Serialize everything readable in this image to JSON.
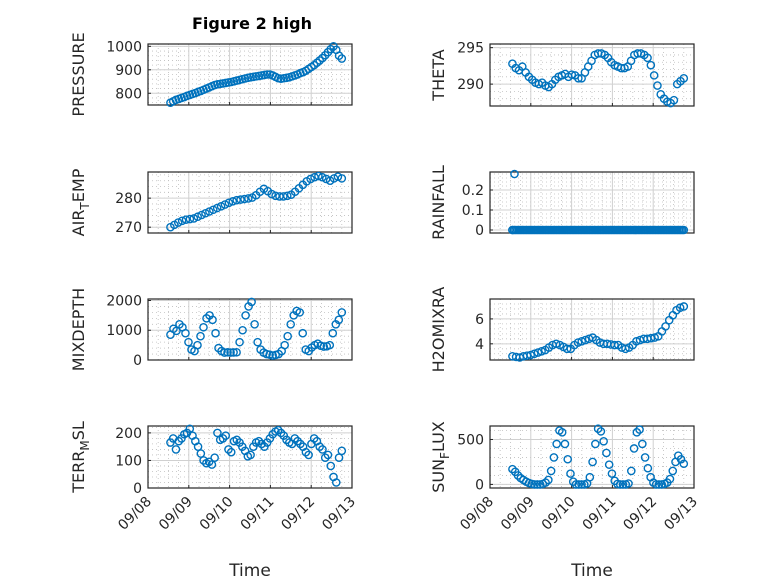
{
  "figure_title": "Figure 2 high",
  "colors": {
    "marker": "#0072bd",
    "axis": "#262626"
  },
  "chart_data": [
    {
      "type": "scatter",
      "name": "PRESSURE",
      "ylabel": "PRESSURE",
      "ylim": [
        750,
        1010
      ],
      "yticks": [
        800,
        900,
        1000
      ],
      "yticklabels": [
        "800",
        "900",
        "1000"
      ],
      "xlim": [
        0,
        5
      ],
      "xticklabels": [],
      "xlabel": "",
      "grid": true,
      "minor_grid": true,
      "y": [
        760,
        766,
        772,
        776,
        780,
        784,
        789,
        793,
        797,
        801,
        806,
        810,
        815,
        820,
        825,
        830,
        835,
        838,
        840,
        842,
        844,
        846,
        848,
        851,
        854,
        857,
        860,
        863,
        866,
        868,
        870,
        872,
        874,
        876,
        878,
        880,
        880,
        876,
        870,
        864,
        862,
        864,
        866,
        868,
        872,
        876,
        880,
        886,
        890,
        896,
        904,
        912,
        920,
        930,
        940,
        950,
        962,
        975,
        988,
        1000,
        985,
        960,
        948
      ]
    },
    {
      "type": "scatter",
      "name": "THETA",
      "ylabel": "THETA",
      "ylim": [
        287,
        295.5
      ],
      "yticks": [
        290,
        295
      ],
      "yticklabels": [
        "290",
        "295"
      ],
      "xlim": [
        0,
        5
      ],
      "xticklabels": [],
      "xlabel": "",
      "grid": true,
      "minor_grid": true,
      "y": [
        292.8,
        292.2,
        291.9,
        292.4,
        291.6,
        291.0,
        290.6,
        290.2,
        290.0,
        290.2,
        289.8,
        289.6,
        290.0,
        290.6,
        291.0,
        291.2,
        291.4,
        291.0,
        291.3,
        291.2,
        290.8,
        290.8,
        291.6,
        292.4,
        293.2,
        294.0,
        294.2,
        294.2,
        294.0,
        293.6,
        293.0,
        292.6,
        292.4,
        292.2,
        292.2,
        292.4,
        293.2,
        294.0,
        294.2,
        294.2,
        294.0,
        293.6,
        292.6,
        291.2,
        289.8,
        288.6,
        288.0,
        287.6,
        287.4,
        287.8,
        290.0,
        290.4,
        290.8
      ]
    },
    {
      "type": "scatter",
      "name": "AIR_TEMP",
      "ylabel": "AIR",
      "ylabel_sub": "T",
      "ylabel_rest": "EMP",
      "ylim": [
        268,
        289
      ],
      "yticks": [
        270,
        280
      ],
      "yticklabels": [
        "270",
        "280"
      ],
      "xlim": [
        0,
        5
      ],
      "xticklabels": [],
      "xlabel": "",
      "grid": true,
      "minor_grid": true,
      "y": [
        270.0,
        270.8,
        271.6,
        272.2,
        272.6,
        272.8,
        273.0,
        273.6,
        274.2,
        274.8,
        275.4,
        276.0,
        276.6,
        277.2,
        277.8,
        278.4,
        278.9,
        279.3,
        279.5,
        279.7,
        279.9,
        280.2,
        281.0,
        282.2,
        283.2,
        282.4,
        281.4,
        280.8,
        280.6,
        280.6,
        280.8,
        281.2,
        282.2,
        283.4,
        284.6,
        285.8,
        286.6,
        287.2,
        287.6,
        287.2,
        286.6,
        286.0,
        286.8,
        287.4,
        286.8
      ]
    },
    {
      "type": "scatter",
      "name": "RAINFALL",
      "ylabel": "RAINFALL",
      "ylim": [
        -0.015,
        0.29
      ],
      "yticks": [
        0,
        0.1,
        0.2
      ],
      "yticklabels": [
        "0",
        "0.1",
        "0.2"
      ],
      "xlim": [
        0,
        5
      ],
      "xticklabels": [],
      "xlabel": "",
      "grid": true,
      "minor_grid": true,
      "spike_value": 0.28,
      "baseline_value": 0
    },
    {
      "type": "scatter",
      "name": "MIXDEPTH",
      "ylabel": "MIXDEPTH",
      "ylim": [
        0,
        2050
      ],
      "yticks": [
        0,
        1000,
        2000
      ],
      "yticklabels": [
        "0",
        "1000",
        "2000"
      ],
      "xlim": [
        0,
        5
      ],
      "xticklabels": [],
      "xlabel": "",
      "grid": true,
      "minor_grid": true,
      "y": [
        850,
        1050,
        980,
        1200,
        1100,
        900,
        600,
        350,
        300,
        500,
        800,
        1100,
        1400,
        1500,
        1350,
        900,
        400,
        300,
        250,
        260,
        250,
        255,
        260,
        600,
        1000,
        1500,
        1800,
        1950,
        1200,
        600,
        350,
        250,
        200,
        180,
        150,
        170,
        200,
        300,
        500,
        800,
        1200,
        1500,
        1650,
        1600,
        900,
        350,
        300,
        420,
        500,
        550,
        480,
        450,
        460,
        500,
        900,
        1200,
        1350,
        1600
      ]
    },
    {
      "type": "scatter",
      "name": "H2OMIXRA",
      "ylabel": "H2OMIXRA",
      "ylim": [
        2.7,
        7.6
      ],
      "yticks": [
        4,
        6
      ],
      "yticklabels": [
        "4",
        "6"
      ],
      "xlim": [
        0,
        5
      ],
      "xticklabels": [],
      "xlabel": "",
      "grid": true,
      "minor_grid": true,
      "y": [
        3.0,
        2.95,
        2.9,
        3.0,
        3.05,
        3.1,
        3.2,
        3.3,
        3.4,
        3.5,
        3.7,
        3.9,
        4.0,
        3.9,
        3.75,
        3.6,
        3.6,
        3.9,
        4.1,
        4.2,
        4.3,
        4.4,
        4.5,
        4.3,
        4.1,
        4.0,
        4.0,
        3.95,
        3.9,
        3.9,
        3.7,
        3.6,
        3.7,
        3.9,
        4.2,
        4.3,
        4.4,
        4.4,
        4.45,
        4.5,
        4.6,
        5.0,
        5.4,
        5.9,
        6.3,
        6.7,
        6.9,
        7.0
      ]
    },
    {
      "type": "scatter",
      "name": "TERR_MSL",
      "ylabel": "TERR",
      "ylabel_sub": "M",
      "ylabel_rest": "SL",
      "ylim": [
        0,
        225
      ],
      "yticks": [
        0,
        100,
        200
      ],
      "yticklabels": [
        "0",
        "100",
        "200"
      ],
      "xlim": [
        0,
        5
      ],
      "xticklabels": [
        "09/08",
        "09/09",
        "09/10",
        "09/11",
        "09/12",
        "09/13"
      ],
      "xlabel": "Time",
      "grid": true,
      "minor_grid": true,
      "y": [
        165,
        180,
        140,
        170,
        180,
        195,
        200,
        215,
        190,
        170,
        150,
        125,
        100,
        90,
        95,
        85,
        110,
        200,
        175,
        180,
        190,
        140,
        130,
        170,
        175,
        165,
        150,
        135,
        115,
        120,
        150,
        165,
        170,
        160,
        150,
        165,
        180,
        195,
        205,
        210,
        200,
        190,
        175,
        165,
        160,
        180,
        170,
        160,
        150,
        130,
        120,
        160,
        180,
        170,
        150,
        140,
        110,
        120,
        80,
        40,
        20,
        110,
        135
      ]
    },
    {
      "type": "scatter",
      "name": "SUN_FLUX",
      "ylabel": "SUN",
      "ylabel_sub": "F",
      "ylabel_rest": "LUX",
      "ylim": [
        -40,
        650
      ],
      "yticks": [
        0,
        500
      ],
      "yticklabels": [
        "0",
        "500"
      ],
      "xlim": [
        0,
        5
      ],
      "xticklabels": [
        "09/08",
        "09/09",
        "09/10",
        "09/11",
        "09/12",
        "09/13"
      ],
      "xlabel": "Time",
      "grid": true,
      "minor_grid": true,
      "y": [
        170,
        140,
        100,
        70,
        50,
        30,
        15,
        5,
        0,
        0,
        0,
        5,
        20,
        50,
        150,
        300,
        450,
        600,
        580,
        450,
        280,
        120,
        30,
        0,
        0,
        0,
        0,
        10,
        80,
        250,
        450,
        620,
        590,
        480,
        350,
        220,
        120,
        40,
        5,
        0,
        0,
        0,
        10,
        150,
        400,
        580,
        610,
        450,
        300,
        180,
        80,
        20,
        0,
        0,
        0,
        5,
        20,
        60,
        150,
        250,
        320,
        280,
        230
      ]
    }
  ]
}
